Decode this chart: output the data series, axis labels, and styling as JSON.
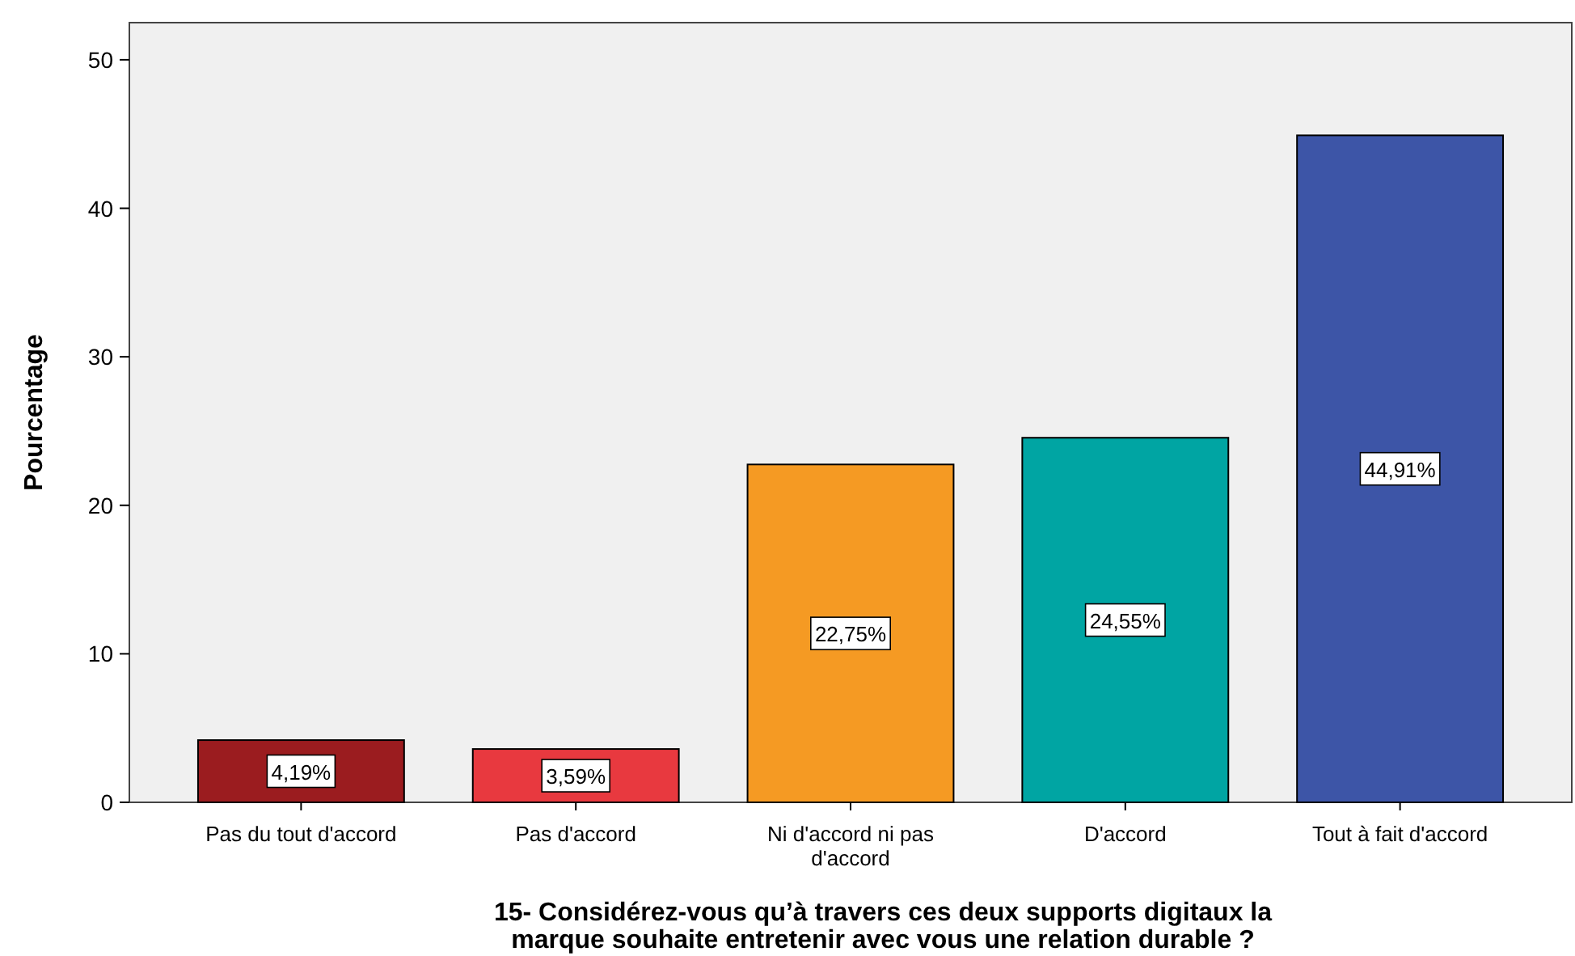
{
  "chart_data": {
    "type": "bar",
    "xlabel": "15- Considérez-vous qu’à travers ces deux supports digitaux la marque souhaite entretenir avec vous une relation durable ?",
    "ylabel": "Pourcentage",
    "categories": [
      "Pas du tout d'accord",
      "Pas d'accord",
      "Ni d'accord ni pas d'accord",
      "D'accord",
      "Tout à fait d'accord"
    ],
    "values": [
      4.19,
      3.59,
      22.75,
      24.55,
      44.91
    ],
    "value_labels": [
      "4,19%",
      "3,59%",
      "22,75%",
      "24,55%",
      "44,91%"
    ],
    "colors": [
      "#9b1c1f",
      "#e8393f",
      "#f59a23",
      "#00a5a3",
      "#3d55a7"
    ],
    "ylim": [
      0,
      52.5
    ],
    "yticks": [
      0,
      10,
      20,
      30,
      40,
      50
    ]
  }
}
